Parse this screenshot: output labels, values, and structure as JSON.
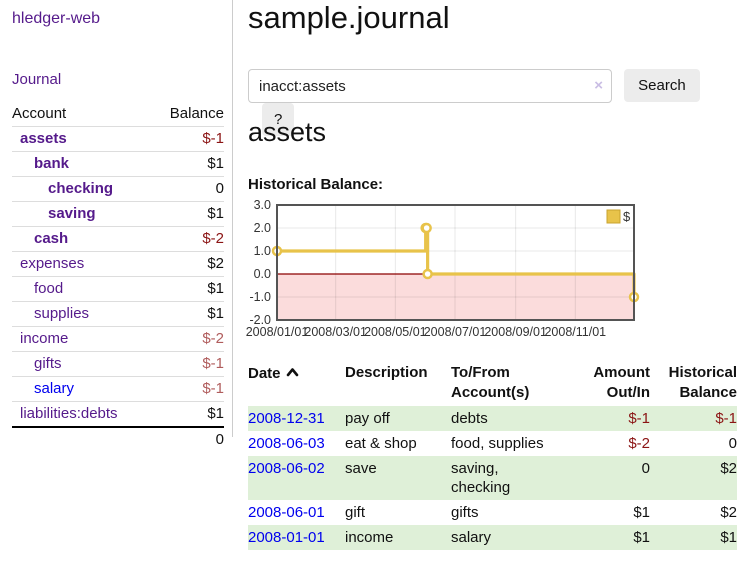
{
  "app": {
    "brand": "hledger-web"
  },
  "nav": {
    "journal": "Journal"
  },
  "sidebar": {
    "accounts_header": {
      "account": "Account",
      "balance": "Balance"
    },
    "accounts": [
      {
        "name": "assets",
        "balance": "$-1",
        "depth": 1,
        "bold": true,
        "neg": "neg-strong"
      },
      {
        "name": "bank",
        "balance": "$1",
        "depth": 2,
        "bold": true
      },
      {
        "name": "checking",
        "balance": "0",
        "depth": 3,
        "bold": true
      },
      {
        "name": "saving",
        "balance": "$1",
        "depth": 3,
        "bold": true
      },
      {
        "name": "cash",
        "balance": "$-2",
        "depth": 2,
        "bold": true,
        "neg": "neg-strong"
      },
      {
        "name": "expenses",
        "balance": "$2",
        "depth": 1
      },
      {
        "name": "food",
        "balance": "$1",
        "depth": 2
      },
      {
        "name": "supplies",
        "balance": "$1",
        "depth": 2
      },
      {
        "name": "income",
        "balance": "$-2",
        "depth": 1,
        "neg": "neg-soft"
      },
      {
        "name": "gifts",
        "balance": "$-1",
        "depth": 2,
        "neg": "neg-soft"
      },
      {
        "name": "salary",
        "balance": "$-1",
        "depth": 2,
        "neg": "neg-soft",
        "blue": true
      },
      {
        "name": "liabilities:debts",
        "balance": "$1",
        "depth": 1
      }
    ],
    "total": "0"
  },
  "header": {
    "title": "sample.journal"
  },
  "search": {
    "value": "inacct:assets",
    "clear_icon": "×",
    "button_label": "Search",
    "help_label": "?"
  },
  "account_page": {
    "heading": "assets",
    "chart_label": "Historical Balance:"
  },
  "chart_data": {
    "type": "line",
    "title": "Historical Balance",
    "step": true,
    "series": [
      {
        "name": "$",
        "color": "#e8c34a",
        "points": [
          [
            "2008-01-01",
            1
          ],
          [
            "2008-06-01",
            2
          ],
          [
            "2008-06-02",
            2
          ],
          [
            "2008-06-03",
            0
          ],
          [
            "2008-12-31",
            -1
          ]
        ]
      }
    ],
    "x_range": [
      "2008-01-01",
      "2008-12-31"
    ],
    "x_ticks": [
      "2008/01/01",
      "2008/03/01",
      "2008/05/01",
      "2008/07/01",
      "2008/09/01",
      "2008/11/01"
    ],
    "y_ticks": [
      "3.0",
      "2.0",
      "1.0",
      "0.0",
      "-1.0",
      "-2.0"
    ],
    "ylim": [
      -2,
      3
    ],
    "grid": true,
    "legend": {
      "label": "$",
      "position": "top-right"
    },
    "colors": {
      "negative_region": "#fbdcdc",
      "zero_line": "#8b0000",
      "border": "#545454",
      "marker_fill": "#ffffff"
    }
  },
  "register": {
    "columns": [
      {
        "label": "Date"
      },
      {
        "label": "Description"
      },
      {
        "label": "To/From Account(s)"
      },
      {
        "label": "Amount Out/In"
      },
      {
        "label": "Historical Balance"
      }
    ],
    "sort": "ascending",
    "rows": [
      {
        "date": "2008-12-31",
        "description": "pay off",
        "accounts": "debts",
        "amount": "$-1",
        "amount_neg": true,
        "balance": "$-1",
        "balance_neg": true
      },
      {
        "date": "2008-06-03",
        "description": "eat & shop",
        "accounts": "food, supplies",
        "amount": "$-2",
        "amount_neg": true,
        "balance": "0"
      },
      {
        "date": "2008-06-02",
        "description": "save",
        "accounts": "saving,\nchecking",
        "amount": "0",
        "balance": "$2"
      },
      {
        "date": "2008-06-01",
        "description": "gift",
        "accounts": "gifts",
        "amount": "$1",
        "balance": "$2"
      },
      {
        "date": "2008-01-01",
        "description": "income",
        "accounts": "salary",
        "amount": "$1",
        "balance": "$1"
      }
    ]
  },
  "colors": {
    "link_purple": "#551a8b",
    "link_blue": "#0000ee",
    "negative_strong": "#8b1414",
    "negative_soft": "#b05c5c",
    "row_stripe_green": "#dff0d8",
    "series_gold": "#e8c34a"
  }
}
